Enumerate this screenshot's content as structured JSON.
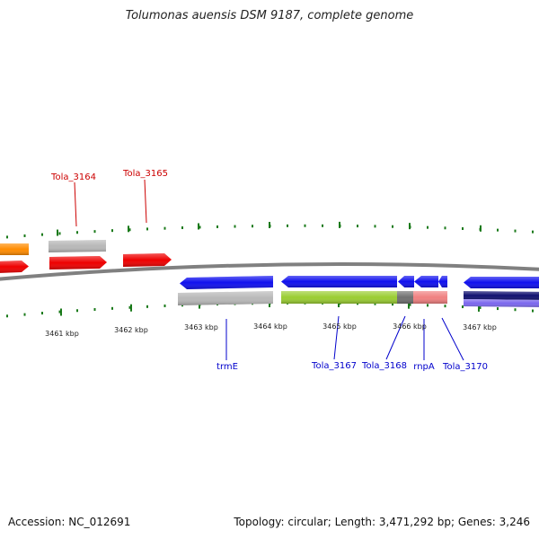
{
  "title": "Tolumonas auensis DSM 9187, complete genome",
  "footer": {
    "accession": "Accession: NC_012691",
    "stats": "Topology: circular; Length: 3,471,292 bp; Genes: 3,246"
  },
  "colors": {
    "backbone": "#808080",
    "tick": "#1a7a1a",
    "label_red": "#cc0000",
    "label_blue": "#0000cc"
  },
  "tick_labels": [
    "3461 kbp",
    "3462 kbp",
    "3463 kbp",
    "3464 kbp",
    "3465 kbp",
    "3466 kbp",
    "3467 kbp"
  ],
  "gene_labels": [
    {
      "name": "Tola_3164",
      "color": "#cc0000"
    },
    {
      "name": "Tola_3165",
      "color": "#cc0000"
    },
    {
      "name": "trmE",
      "color": "#0000cc"
    },
    {
      "name": "Tola_3167",
      "color": "#0000cc"
    },
    {
      "name": "Tola_3168",
      "color": "#0000cc"
    },
    {
      "name": "rnpA",
      "color": "#0000cc"
    },
    {
      "name": "Tola_3170",
      "color": "#0000cc"
    }
  ],
  "features": [
    {
      "id": "orange-left",
      "color": "#ff8c00"
    },
    {
      "id": "gray-3164",
      "color": "#b8b8b8"
    },
    {
      "id": "red-left",
      "color": "#ee0000"
    },
    {
      "id": "red-3164",
      "color": "#ee0000"
    },
    {
      "id": "red-3165",
      "color": "#ee0000"
    },
    {
      "id": "blue-trmE",
      "color": "#1010ee"
    },
    {
      "id": "blue-3167",
      "color": "#1010ee"
    },
    {
      "id": "blue-3168",
      "color": "#1010ee"
    },
    {
      "id": "blue-rnpA",
      "color": "#1010ee"
    },
    {
      "id": "blue-3170",
      "color": "#1010ee"
    },
    {
      "id": "blue-right",
      "color": "#1010ee"
    },
    {
      "id": "gray-trmE",
      "color": "#b8b8b8"
    },
    {
      "id": "green-3167",
      "color": "#9acd32"
    },
    {
      "id": "darkgray-3168",
      "color": "#707070"
    },
    {
      "id": "pink-rnpA",
      "color": "#f08080"
    },
    {
      "id": "navy-right",
      "color": "#101070"
    },
    {
      "id": "slate-right",
      "color": "#7b68ee"
    }
  ]
}
